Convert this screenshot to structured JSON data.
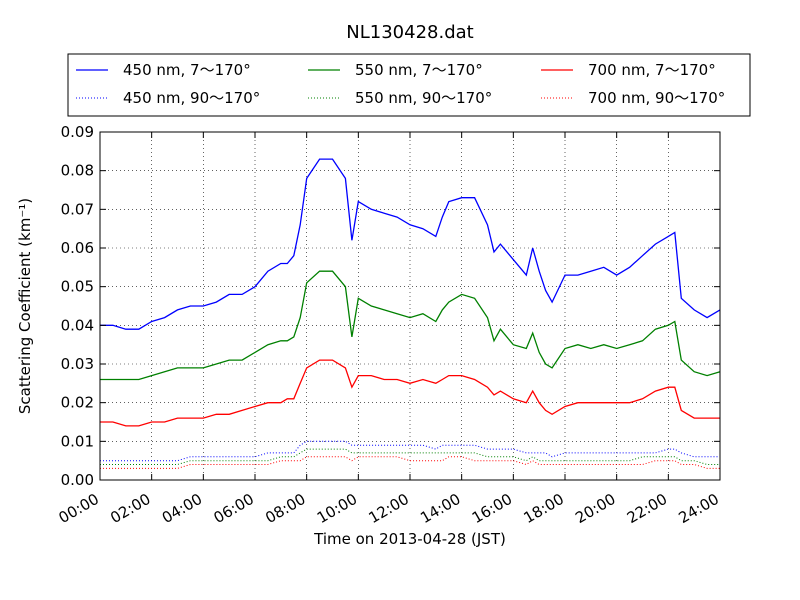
{
  "chart_data": {
    "type": "line",
    "title": "NL130428.dat",
    "xlabel": "Time on 2013-04-28 (JST)",
    "ylabel": "Scattering Coefficient (km⁻¹)",
    "xlim": [
      "00:00",
      "24:00"
    ],
    "ylim": [
      0,
      0.09
    ],
    "x_ticks": [
      "00:00",
      "02:00",
      "04:00",
      "06:00",
      "08:00",
      "10:00",
      "12:00",
      "14:00",
      "16:00",
      "18:00",
      "20:00",
      "22:00",
      "24:00"
    ],
    "y_ticks": [
      "0.00",
      "0.01",
      "0.02",
      "0.03",
      "0.04",
      "0.05",
      "0.06",
      "0.07",
      "0.08",
      "0.09"
    ],
    "grid": true,
    "legend_position": "top",
    "x_hours": [
      0,
      0.5,
      1,
      1.5,
      2,
      2.5,
      3,
      3.5,
      4,
      4.5,
      5,
      5.5,
      6,
      6.5,
      7,
      7.25,
      7.5,
      7.75,
      8,
      8.5,
      9,
      9.5,
      9.75,
      10,
      10.5,
      11,
      11.5,
      12,
      12.5,
      13,
      13.25,
      13.5,
      14,
      14.5,
      15,
      15.25,
      15.5,
      16,
      16.5,
      16.75,
      17,
      17.25,
      17.5,
      18,
      18.5,
      19,
      19.5,
      20,
      20.5,
      21,
      21.5,
      22,
      22.25,
      22.5,
      23,
      23.5,
      24
    ],
    "series": [
      {
        "name": "450 nm, 7～170°",
        "color": "#0000ff",
        "style": "solid",
        "values": [
          0.04,
          0.04,
          0.039,
          0.039,
          0.041,
          0.042,
          0.044,
          0.045,
          0.045,
          0.046,
          0.048,
          0.048,
          0.05,
          0.054,
          0.056,
          0.056,
          0.058,
          0.066,
          0.078,
          0.083,
          0.083,
          0.078,
          0.062,
          0.072,
          0.07,
          0.069,
          0.068,
          0.066,
          0.065,
          0.063,
          0.068,
          0.072,
          0.073,
          0.073,
          0.066,
          0.059,
          0.061,
          0.057,
          0.053,
          0.06,
          0.054,
          0.049,
          0.046,
          0.053,
          0.053,
          0.054,
          0.055,
          0.053,
          0.055,
          0.058,
          0.061,
          0.063,
          0.064,
          0.047,
          0.044,
          0.042,
          0.044
        ]
      },
      {
        "name": "550 nm, 7～170°",
        "color": "#008000",
        "style": "solid",
        "values": [
          0.026,
          0.026,
          0.026,
          0.026,
          0.027,
          0.028,
          0.029,
          0.029,
          0.029,
          0.03,
          0.031,
          0.031,
          0.033,
          0.035,
          0.036,
          0.036,
          0.037,
          0.042,
          0.051,
          0.054,
          0.054,
          0.05,
          0.037,
          0.047,
          0.045,
          0.044,
          0.043,
          0.042,
          0.043,
          0.041,
          0.044,
          0.046,
          0.048,
          0.047,
          0.042,
          0.036,
          0.039,
          0.035,
          0.034,
          0.038,
          0.033,
          0.03,
          0.029,
          0.034,
          0.035,
          0.034,
          0.035,
          0.034,
          0.035,
          0.036,
          0.039,
          0.04,
          0.041,
          0.031,
          0.028,
          0.027,
          0.028
        ]
      },
      {
        "name": "700 nm, 7～170°",
        "color": "#ff0000",
        "style": "solid",
        "values": [
          0.015,
          0.015,
          0.014,
          0.014,
          0.015,
          0.015,
          0.016,
          0.016,
          0.016,
          0.017,
          0.017,
          0.018,
          0.019,
          0.02,
          0.02,
          0.021,
          0.021,
          0.025,
          0.029,
          0.031,
          0.031,
          0.029,
          0.024,
          0.027,
          0.027,
          0.026,
          0.026,
          0.025,
          0.026,
          0.025,
          0.026,
          0.027,
          0.027,
          0.026,
          0.024,
          0.022,
          0.023,
          0.021,
          0.02,
          0.023,
          0.02,
          0.018,
          0.017,
          0.019,
          0.02,
          0.02,
          0.02,
          0.02,
          0.02,
          0.021,
          0.023,
          0.024,
          0.024,
          0.018,
          0.016,
          0.016,
          0.016
        ]
      },
      {
        "name": "450 nm, 90～170°",
        "color": "#0000ff",
        "style": "dotted",
        "values": [
          0.005,
          0.005,
          0.005,
          0.005,
          0.005,
          0.005,
          0.005,
          0.006,
          0.006,
          0.006,
          0.006,
          0.006,
          0.006,
          0.007,
          0.007,
          0.007,
          0.007,
          0.009,
          0.01,
          0.01,
          0.01,
          0.01,
          0.009,
          0.009,
          0.009,
          0.009,
          0.009,
          0.009,
          0.009,
          0.008,
          0.009,
          0.009,
          0.009,
          0.009,
          0.008,
          0.008,
          0.008,
          0.008,
          0.007,
          0.007,
          0.007,
          0.007,
          0.006,
          0.007,
          0.007,
          0.007,
          0.007,
          0.007,
          0.007,
          0.007,
          0.007,
          0.008,
          0.008,
          0.007,
          0.006,
          0.006,
          0.006
        ]
      },
      {
        "name": "550 nm, 90～170°",
        "color": "#008000",
        "style": "dotted",
        "values": [
          0.004,
          0.004,
          0.004,
          0.004,
          0.004,
          0.004,
          0.004,
          0.005,
          0.005,
          0.005,
          0.005,
          0.005,
          0.005,
          0.005,
          0.006,
          0.006,
          0.006,
          0.007,
          0.008,
          0.008,
          0.008,
          0.008,
          0.007,
          0.007,
          0.007,
          0.007,
          0.007,
          0.007,
          0.007,
          0.007,
          0.007,
          0.007,
          0.007,
          0.007,
          0.006,
          0.006,
          0.006,
          0.006,
          0.005,
          0.006,
          0.005,
          0.005,
          0.005,
          0.005,
          0.005,
          0.005,
          0.005,
          0.005,
          0.005,
          0.006,
          0.006,
          0.006,
          0.006,
          0.005,
          0.005,
          0.004,
          0.004
        ]
      },
      {
        "name": "700 nm, 90～170°",
        "color": "#ff0000",
        "style": "dotted",
        "values": [
          0.003,
          0.003,
          0.003,
          0.003,
          0.003,
          0.003,
          0.003,
          0.004,
          0.004,
          0.004,
          0.004,
          0.004,
          0.004,
          0.004,
          0.005,
          0.005,
          0.005,
          0.005,
          0.006,
          0.006,
          0.006,
          0.006,
          0.005,
          0.006,
          0.006,
          0.006,
          0.006,
          0.005,
          0.005,
          0.005,
          0.005,
          0.006,
          0.006,
          0.005,
          0.005,
          0.005,
          0.005,
          0.005,
          0.004,
          0.005,
          0.004,
          0.004,
          0.004,
          0.004,
          0.004,
          0.004,
          0.004,
          0.004,
          0.004,
          0.004,
          0.005,
          0.005,
          0.005,
          0.004,
          0.004,
          0.003,
          0.003
        ]
      }
    ]
  }
}
